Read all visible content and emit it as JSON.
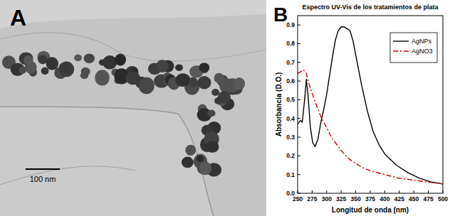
{
  "panel_a": {
    "label": "A",
    "scale_bar_label": "100 nm"
  },
  "panel_b": {
    "label": "B"
  },
  "chart_data": {
    "type": "line",
    "title": "Espectro UV-Vis de los tratamientos de plata",
    "x_label": "Longitud de onda (nm)",
    "y_label": "Absorbancia (D.O.)",
    "xlim": [
      250,
      500
    ],
    "xticks": [
      250,
      275,
      300,
      325,
      350,
      375,
      400,
      425,
      450,
      475,
      500
    ],
    "ylim": [
      0,
      0.95
    ],
    "yticks": [
      {
        "value": 0,
        "label": "0.0"
      },
      0.1,
      0.2,
      0.3,
      0.4,
      0.5,
      0.6,
      0.7,
      0.8,
      0.9
    ],
    "grid": false,
    "legend": "top-right",
    "series": [
      {
        "name": "AgNPs",
        "color": "#000000",
        "line_style": "solid",
        "x": [
          250,
          255,
          258,
          262,
          265,
          268,
          272,
          276,
          280,
          285,
          290,
          295,
          300,
          305,
          310,
          315,
          320,
          325,
          330,
          335,
          340,
          345,
          350,
          360,
          370,
          380,
          390,
          400,
          420,
          440,
          460,
          480,
          500
        ],
        "values": [
          0.37,
          0.39,
          0.38,
          0.5,
          0.61,
          0.52,
          0.35,
          0.27,
          0.25,
          0.29,
          0.38,
          0.45,
          0.53,
          0.63,
          0.73,
          0.82,
          0.87,
          0.89,
          0.89,
          0.88,
          0.87,
          0.82,
          0.74,
          0.58,
          0.44,
          0.33,
          0.26,
          0.21,
          0.15,
          0.11,
          0.08,
          0.06,
          0.05
        ]
      },
      {
        "name": "AgNO3",
        "color": "#cc0000",
        "line_style": "dashdot",
        "x": [
          250,
          260,
          265,
          270,
          280,
          290,
          300,
          310,
          320,
          330,
          340,
          350,
          360,
          375,
          400,
          425,
          450,
          475,
          500
        ],
        "values": [
          0.64,
          0.66,
          0.64,
          0.58,
          0.49,
          0.41,
          0.35,
          0.29,
          0.25,
          0.21,
          0.18,
          0.16,
          0.14,
          0.12,
          0.1,
          0.08,
          0.07,
          0.06,
          0.05
        ]
      }
    ]
  }
}
